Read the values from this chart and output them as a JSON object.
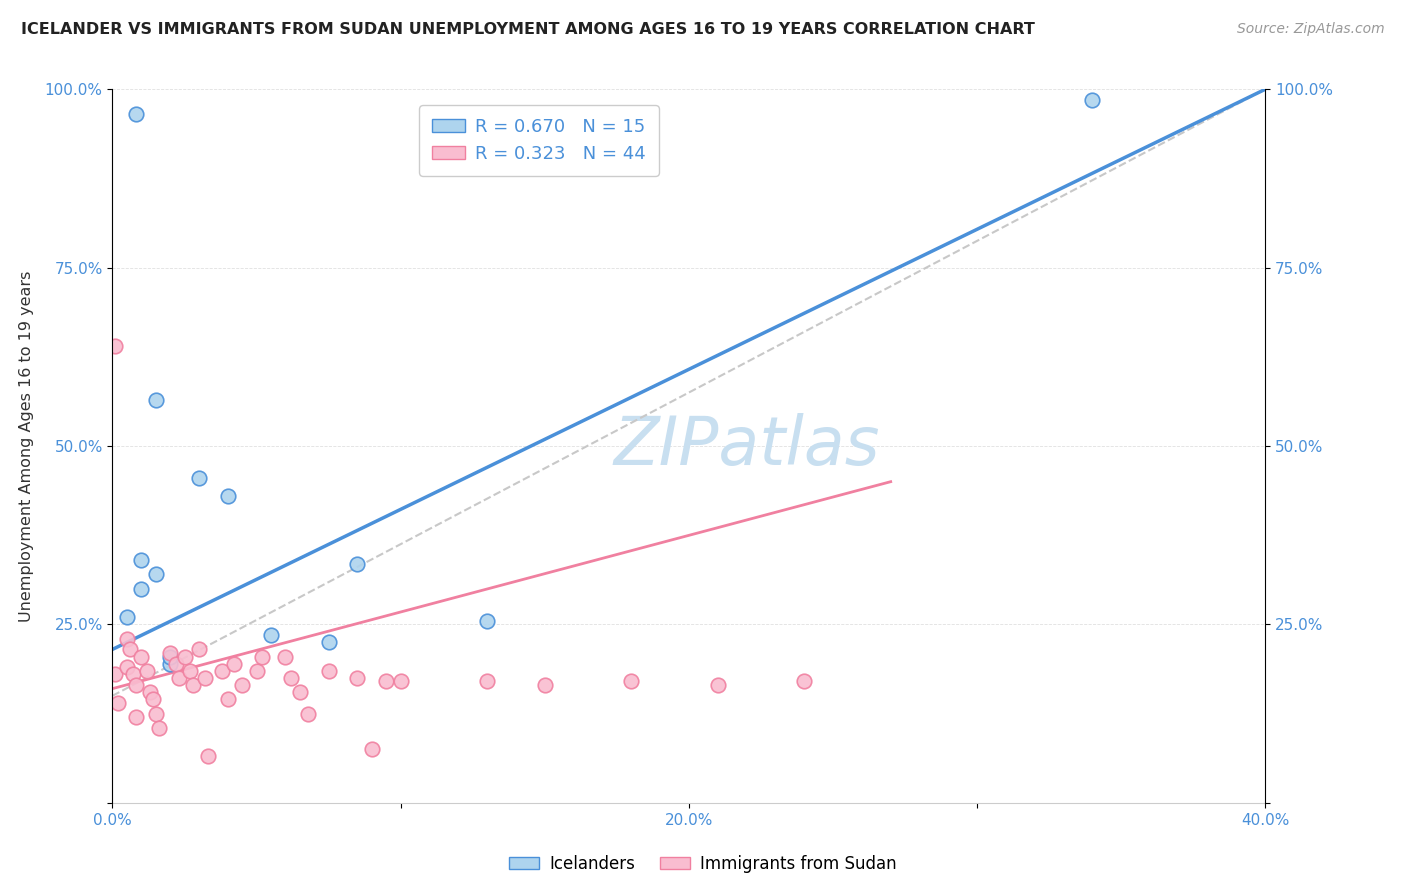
{
  "title": "ICELANDER VS IMMIGRANTS FROM SUDAN UNEMPLOYMENT AMONG AGES 16 TO 19 YEARS CORRELATION CHART",
  "source": "Source: ZipAtlas.com",
  "ylabel": "Unemployment Among Ages 16 to 19 years",
  "xlim": [
    0.0,
    0.4
  ],
  "ylim": [
    0.0,
    1.0
  ],
  "xticks": [
    0.0,
    0.1,
    0.2,
    0.3,
    0.4
  ],
  "xticklabels": [
    "0.0%",
    "",
    "20.0%",
    "",
    "40.0%"
  ],
  "yticks": [
    0.0,
    0.25,
    0.5,
    0.75,
    1.0
  ],
  "yticklabels_left": [
    "",
    "25.0%",
    "50.0%",
    "75.0%",
    "100.0%"
  ],
  "yticklabels_right": [
    "",
    "25.0%",
    "50.0%",
    "75.0%",
    "100.0%"
  ],
  "blue_color": "#AED4EE",
  "pink_color": "#F9BDD0",
  "blue_line_color": "#4A90D9",
  "pink_line_color": "#F080A0",
  "dashed_line_color": "#C8C8C8",
  "watermark_color": "#C8DFF0",
  "legend_R1": "R = 0.670",
  "legend_N1": "N = 15",
  "legend_R2": "R = 0.323",
  "legend_N2": "N = 44",
  "legend_label1": "Icelanders",
  "legend_label2": "Immigrants from Sudan",
  "blue_points_x": [
    0.005,
    0.01,
    0.01,
    0.015,
    0.02,
    0.02,
    0.015,
    0.03,
    0.055,
    0.04,
    0.008,
    0.075,
    0.085,
    0.13,
    0.34
  ],
  "blue_points_y": [
    0.26,
    0.3,
    0.34,
    0.32,
    0.195,
    0.205,
    0.565,
    0.455,
    0.235,
    0.43,
    0.965,
    0.225,
    0.335,
    0.255,
    0.985
  ],
  "pink_points_x": [
    0.001,
    0.001,
    0.002,
    0.005,
    0.005,
    0.006,
    0.007,
    0.008,
    0.008,
    0.01,
    0.012,
    0.013,
    0.014,
    0.015,
    0.016,
    0.02,
    0.022,
    0.023,
    0.025,
    0.027,
    0.028,
    0.03,
    0.032,
    0.033,
    0.038,
    0.04,
    0.042,
    0.045,
    0.05,
    0.052,
    0.06,
    0.062,
    0.065,
    0.068,
    0.075,
    0.085,
    0.09,
    0.095,
    0.1,
    0.13,
    0.15,
    0.18,
    0.21,
    0.24
  ],
  "pink_points_y": [
    0.64,
    0.18,
    0.14,
    0.19,
    0.23,
    0.215,
    0.18,
    0.165,
    0.12,
    0.205,
    0.185,
    0.155,
    0.145,
    0.125,
    0.105,
    0.21,
    0.195,
    0.175,
    0.205,
    0.185,
    0.165,
    0.215,
    0.175,
    0.065,
    0.185,
    0.145,
    0.195,
    0.165,
    0.185,
    0.205,
    0.205,
    0.175,
    0.155,
    0.125,
    0.185,
    0.175,
    0.075,
    0.17,
    0.17,
    0.17,
    0.165,
    0.17,
    0.165,
    0.17
  ],
  "blue_line_x": [
    0.0,
    0.4
  ],
  "blue_line_y": [
    0.215,
    1.0
  ],
  "pink_line_x": [
    0.0,
    0.27
  ],
  "pink_line_y": [
    0.16,
    0.45
  ],
  "diag_line_x": [
    0.0,
    0.4
  ],
  "diag_line_y": [
    0.15,
    1.0
  ],
  "point_size": 110
}
